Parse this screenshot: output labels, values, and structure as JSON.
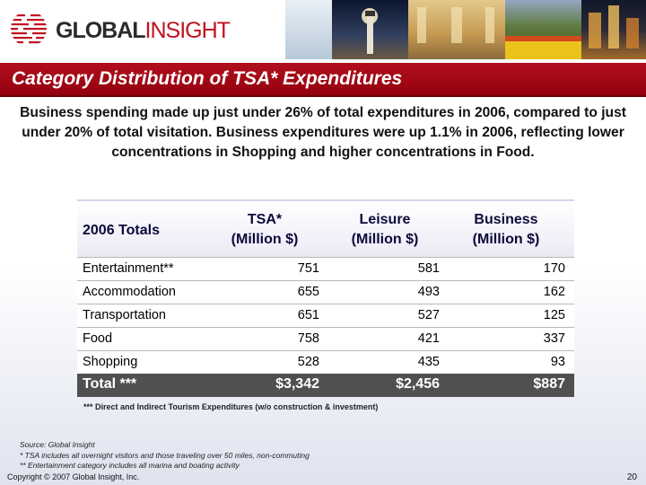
{
  "brand": {
    "name_bold": "GLOBAL",
    "name_light": "INSIGHT"
  },
  "title": "Category Distribution of TSA* Expenditures",
  "intro": "Business spending made up just under 26% of total expenditures in 2006, compared to just under 20% of total visitation. Business expenditures were up 1.1% in 2006, reflecting lower concentrations in Shopping and higher concentrations in Food.",
  "table": {
    "headers": [
      {
        "line1": "2006 Totals",
        "line2": ""
      },
      {
        "line1": "TSA*",
        "line2": "(Million $)"
      },
      {
        "line1": "Leisure",
        "line2": "(Million $)"
      },
      {
        "line1": "Business",
        "line2": "(Million $)"
      }
    ],
    "rows": [
      {
        "category": "Entertainment**",
        "tsa": "751",
        "leisure": "581",
        "business": "170"
      },
      {
        "category": "Accommodation",
        "tsa": "655",
        "leisure": "493",
        "business": "162"
      },
      {
        "category": "Transportation",
        "tsa": "651",
        "leisure": "527",
        "business": "125"
      },
      {
        "category": "Food",
        "tsa": "758",
        "leisure": "421",
        "business": "337"
      },
      {
        "category": "Shopping",
        "tsa": "528",
        "leisure": "435",
        "business": "93"
      }
    ],
    "total": {
      "category": "Total ***",
      "tsa": "$3,342",
      "leisure": "$2,456",
      "business": "$887"
    }
  },
  "footnote_main": "*** Direct and Indirect Tourism Expenditures (w/o construction & investment)",
  "notes": [
    "Source:  Global Insight",
    "* TSA includes all overnight visitors and those traveling over 50 miles, non-commuting",
    "** Entertainment category includes all marina and boating activity"
  ],
  "copyright": "Copyright © 2007 Global Insight, Inc.",
  "page_number": "20",
  "colors": {
    "title_bar": "#a50a18",
    "brand_red": "#c1121f",
    "total_row": "#505050",
    "header_text": "#0b0b3a"
  }
}
